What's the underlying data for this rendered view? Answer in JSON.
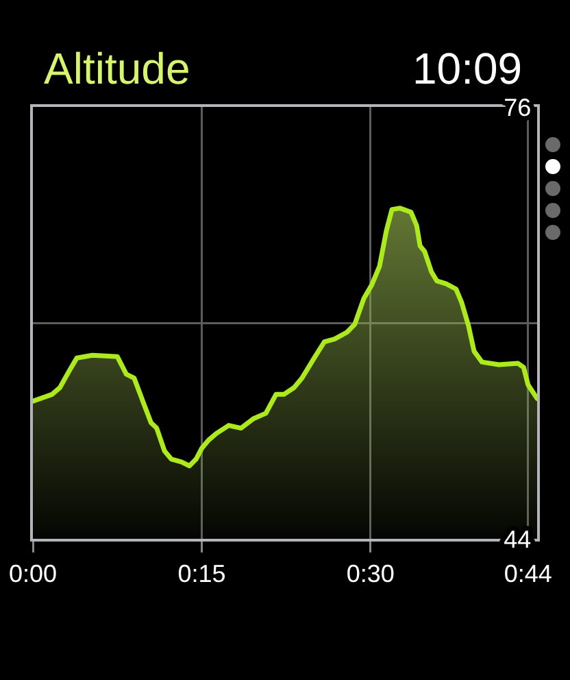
{
  "chart_data": {
    "type": "area",
    "title": "Altitude",
    "annotations": [
      "10:09"
    ],
    "x": [
      0,
      1.7,
      2.4,
      3.2,
      3.9,
      5.3,
      7.5,
      8.3,
      9.0,
      9.9,
      10.5,
      11.0,
      11.7,
      12.3,
      13.2,
      13.9,
      14.5,
      15.0,
      15.6,
      16.3,
      17.4,
      18.5,
      19.6,
      20.7,
      21.6,
      22.3,
      23.2,
      23.9,
      25.0,
      25.9,
      26.8,
      27.9,
      28.6,
      29.4,
      30.1,
      30.8,
      31.4,
      31.9,
      32.6,
      33.6,
      34.1,
      34.4,
      34.8,
      35.4,
      35.9,
      36.7,
      37.6,
      38.1,
      38.7,
      39.2,
      39.9,
      41.4,
      43.1,
      43.6,
      44.0,
      44.8
    ],
    "values": [
      54.2,
      54.7,
      55.2,
      56.4,
      57.4,
      57.6,
      57.5,
      56.2,
      55.9,
      53.9,
      52.6,
      52.2,
      50.5,
      49.9,
      49.7,
      49.4,
      49.9,
      50.7,
      51.3,
      51.8,
      52.4,
      52.2,
      52.9,
      53.3,
      54.7,
      54.7,
      55.2,
      55.9,
      57.4,
      58.6,
      58.8,
      59.3,
      59.9,
      61.8,
      62.8,
      64.2,
      66.8,
      68.4,
      68.5,
      68.2,
      67.2,
      65.7,
      65.3,
      63.8,
      63.1,
      62.9,
      62.5,
      61.5,
      59.8,
      57.9,
      57.1,
      56.9,
      57.0,
      56.7,
      55.4,
      54.4
    ],
    "color": "#acea1e",
    "xlim": [
      0,
      44.8
    ],
    "xticks": [
      {
        "value": 0,
        "label": "0:00"
      },
      {
        "value": 15,
        "label": "0:15"
      },
      {
        "value": 30,
        "label": "0:30"
      },
      {
        "value": 44,
        "label": "0:44"
      }
    ],
    "ylim": [
      44,
      76
    ],
    "yticks": [
      44,
      {
        "value": 60,
        "label": null
      },
      76
    ],
    "grid": true
  }
}
